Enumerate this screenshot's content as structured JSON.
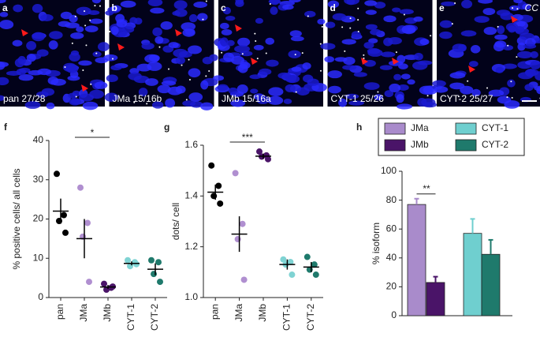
{
  "panels": [
    {
      "letter": "a",
      "label": "pan 27/28"
    },
    {
      "letter": "b",
      "label": "JMa 15/16b"
    },
    {
      "letter": "c",
      "label": "JMb 15/16a"
    },
    {
      "letter": "d",
      "label": "CYT-1 25/26"
    },
    {
      "letter": "e",
      "label": "CYT-2 25/27",
      "corner": "CC"
    }
  ],
  "chart_data": [
    {
      "type": "dot",
      "letter": "f",
      "y_label": "% positive cells/ all cells",
      "categories": [
        "pan",
        "JMa",
        "JMb",
        "CYT-1",
        "CYT-2"
      ],
      "colors": [
        "#000000",
        "#b08fd0",
        "#4a1468",
        "#7fd3d3",
        "#1f7a6c"
      ],
      "points": [
        [
          31.5,
          21,
          19.5,
          16.5
        ],
        [
          28,
          19,
          15.5,
          4
        ],
        [
          3.5,
          2.5,
          2,
          2.8
        ],
        [
          9.5,
          9,
          8,
          8.5
        ],
        [
          9.5,
          9,
          6,
          4
        ]
      ],
      "means": [
        22,
        15,
        2.7,
        8.7,
        7.2
      ],
      "sems": [
        3.2,
        5,
        0.5,
        0.5,
        1.5
      ],
      "ylim": [
        0,
        40
      ],
      "yticks": [
        0,
        10,
        20,
        30,
        40
      ],
      "significance": "*"
    },
    {
      "type": "dot",
      "letter": "g",
      "y_label": "dots/ cell",
      "categories": [
        "pan",
        "JMa",
        "JMb",
        "CYT-1",
        "CYT-2"
      ],
      "colors": [
        "#000000",
        "#b08fd0",
        "#4a1468",
        "#7fd3d3",
        "#1f7a6c"
      ],
      "points": [
        [
          1.52,
          1.44,
          1.4,
          1.37
        ],
        [
          1.49,
          1.29,
          1.23,
          1.07
        ],
        [
          1.575,
          1.56,
          1.555,
          1.545
        ],
        [
          1.15,
          1.14,
          1.13,
          1.09
        ],
        [
          1.16,
          1.13,
          1.11,
          1.09
        ]
      ],
      "means": [
        1.415,
        1.25,
        1.557,
        1.13,
        1.12
      ],
      "sems": [
        0.03,
        0.07,
        0.01,
        0.02,
        0.02
      ],
      "ylim": [
        1,
        1.6
      ],
      "yticks": [
        {
          "value": 1,
          "label": "1.0"
        },
        1.2,
        1.4,
        1.6
      ],
      "significance": "***"
    },
    {
      "type": "bar",
      "letter": "h",
      "y_label": "% isoform",
      "categories": [
        "JMa",
        "JMb",
        "CYT-1",
        "CYT-2"
      ],
      "colors": [
        "#a98bcb",
        "#4a1468",
        "#6fcfcf",
        "#1f7a6c"
      ],
      "values": [
        77,
        23,
        57,
        42.5
      ],
      "errors": [
        4,
        4,
        10,
        10
      ],
      "ylim": [
        0,
        100
      ],
      "yticks": [
        0,
        20,
        40,
        60,
        80,
        100
      ],
      "significance": "**",
      "legend": "top"
    }
  ]
}
